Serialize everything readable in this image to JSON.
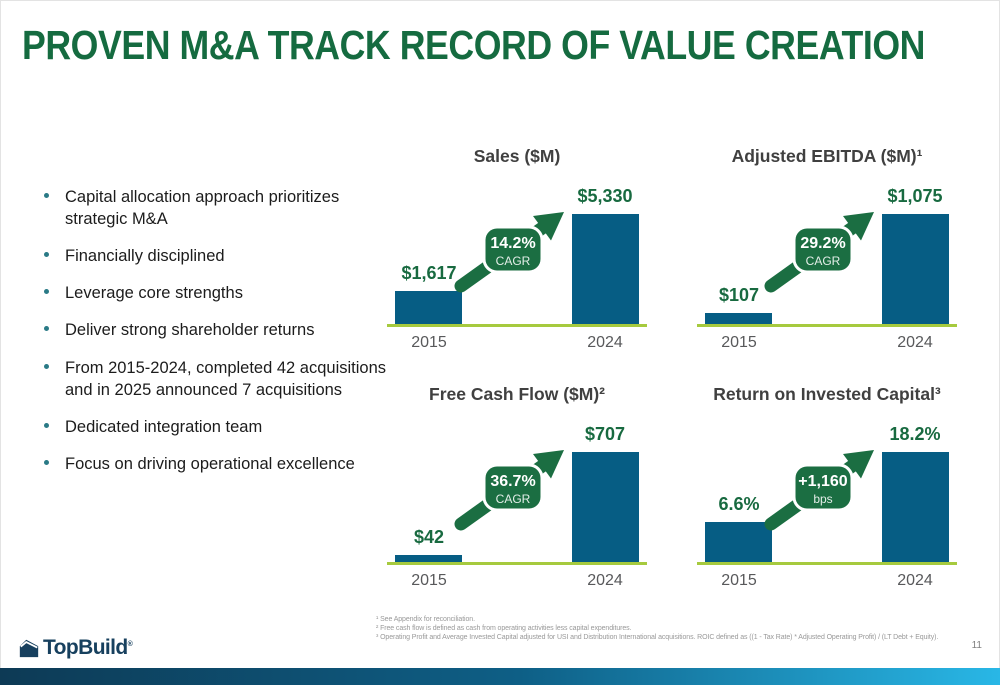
{
  "slide": {
    "title": "PROVEN M&A TRACK RECORD OF VALUE CREATION",
    "page_number": "11"
  },
  "bullets": [
    "Capital allocation approach prioritizes strategic M&A",
    "Financially disciplined",
    "Leverage core strengths",
    "Deliver strong shareholder returns",
    "From 2015-2024, completed 42 acquisitions and in 2025 announced 7 acquisitions",
    "Dedicated integration team",
    "Focus on driving operational excellence"
  ],
  "chart_data": [
    {
      "type": "bar",
      "title": "Sales ($M)",
      "categories": [
        "2015",
        "2024"
      ],
      "values": [
        1617,
        5330
      ],
      "value_labels": [
        "$1,617",
        "$5,330"
      ],
      "badge": {
        "line1": "14.2%",
        "line2": "CAGR"
      },
      "legend_position": "none",
      "grid": false
    },
    {
      "type": "bar",
      "title": "Adjusted EBITDA ($M)¹",
      "categories": [
        "2015",
        "2024"
      ],
      "values": [
        107,
        1075
      ],
      "value_labels": [
        "$107",
        "$1,075"
      ],
      "badge": {
        "line1": "29.2%",
        "line2": "CAGR"
      },
      "legend_position": "none",
      "grid": false
    },
    {
      "type": "bar",
      "title": "Free Cash Flow ($M)²",
      "categories": [
        "2015",
        "2024"
      ],
      "values": [
        42,
        707
      ],
      "value_labels": [
        "$42",
        "$707"
      ],
      "badge": {
        "line1": "36.7%",
        "line2": "CAGR"
      },
      "legend_position": "none",
      "grid": false
    },
    {
      "type": "bar",
      "title": "Return on Invested Capital³",
      "categories": [
        "2015",
        "2024"
      ],
      "values": [
        6.6,
        18.2
      ],
      "value_labels": [
        "6.6%",
        "18.2%"
      ],
      "badge": {
        "line1": "+1,160",
        "line2": "bps"
      },
      "legend_position": "none",
      "grid": false
    }
  ],
  "footnotes": [
    "¹ See Appendix for reconciliation.",
    "² Free cash flow is defined as cash from operating activities less capital expenditures.",
    "³ Operating Profit and Average Invested Capital adjusted for USI and Distribution International acquisitions. ROIC defined as ((1 - Tax Rate) * Adjusted Operating Profit) / (LT Debt + Equity)."
  ],
  "logo": {
    "text": "TopBuild",
    "registered": "®"
  },
  "colors": {
    "title_green": "#156B40",
    "value_green": "#186A40",
    "badge_green": "#1B6E42",
    "bar_blue": "#065D84",
    "baseline_lime": "#A6CA3E",
    "chart_title_gray": "#404040",
    "year_gray": "#58595B",
    "logo_navy": "#17405E",
    "bottom_bar_left": "#0D3A55",
    "bottom_bar_right": "#29B7E6"
  }
}
